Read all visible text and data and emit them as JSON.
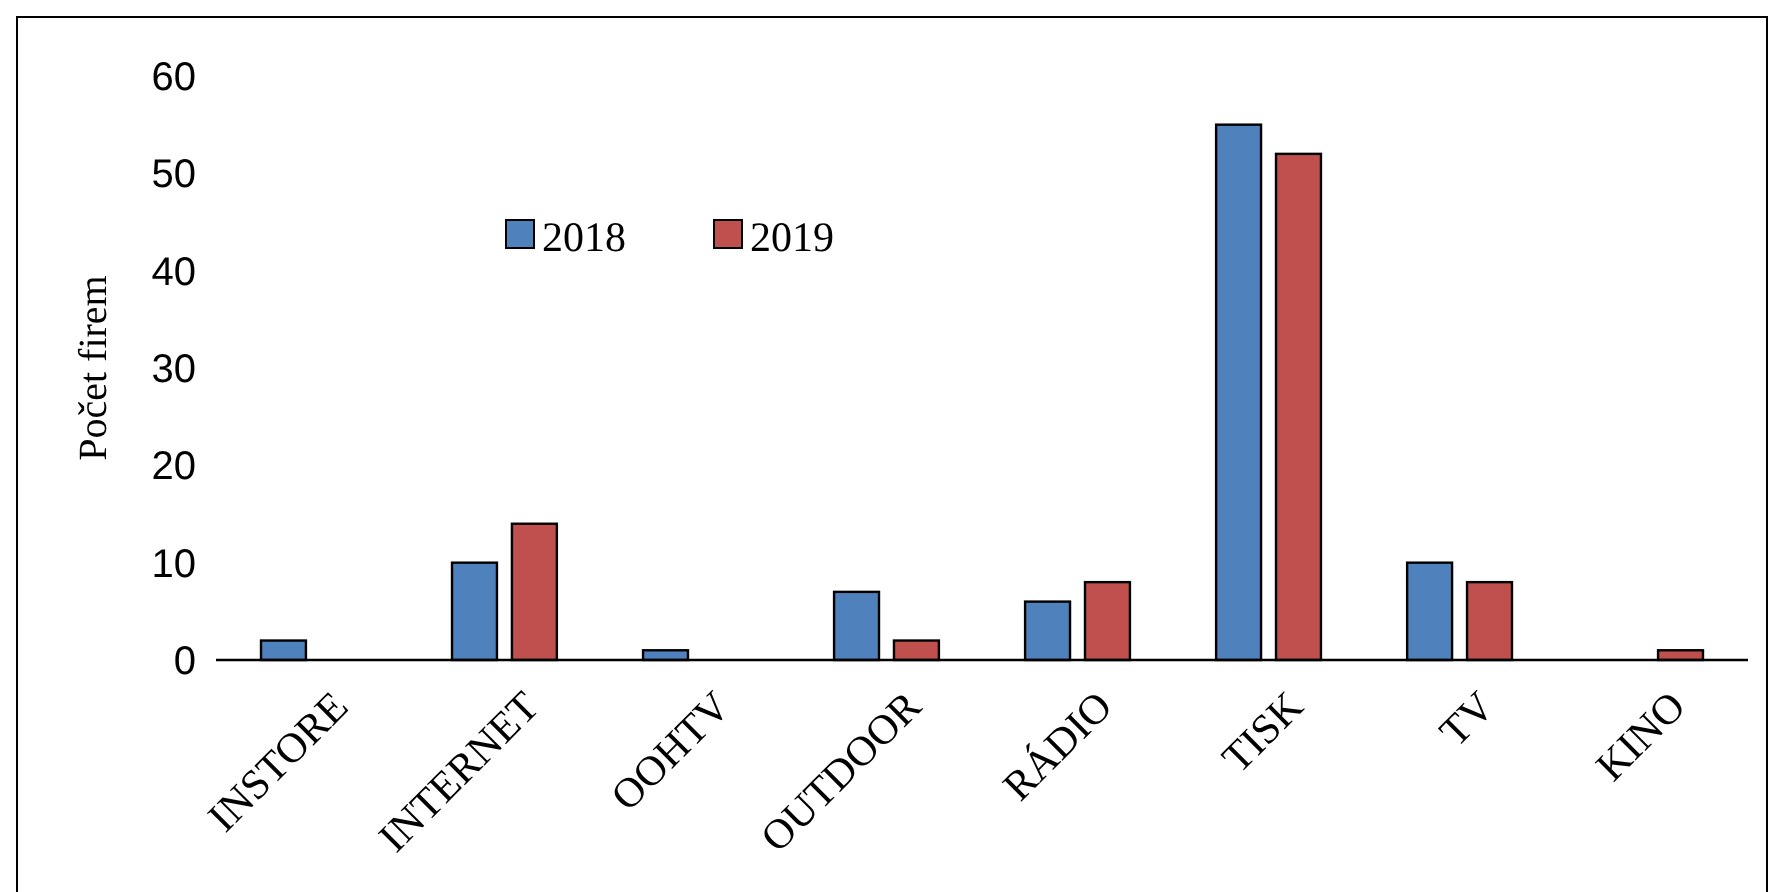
{
  "chart_data": {
    "type": "bar",
    "ylabel": "Počet firem",
    "categories": [
      "INSTORE",
      "INTERNET",
      "OOHTV",
      "OUTDOOR",
      "RÁDIO",
      "TISK",
      "TV",
      "KINO"
    ],
    "series": [
      {
        "name": "2018",
        "color": "#4f81bd",
        "values": [
          2,
          10,
          1,
          7,
          6,
          55,
          10,
          null
        ]
      },
      {
        "name": "2019",
        "color": "#c0504d",
        "values": [
          null,
          14,
          null,
          2,
          8,
          52,
          8,
          1
        ]
      }
    ],
    "ylim": [
      0,
      60
    ],
    "yticks": [
      0,
      10,
      20,
      30,
      40,
      50,
      60
    ],
    "grid": false,
    "legend": "top left"
  }
}
